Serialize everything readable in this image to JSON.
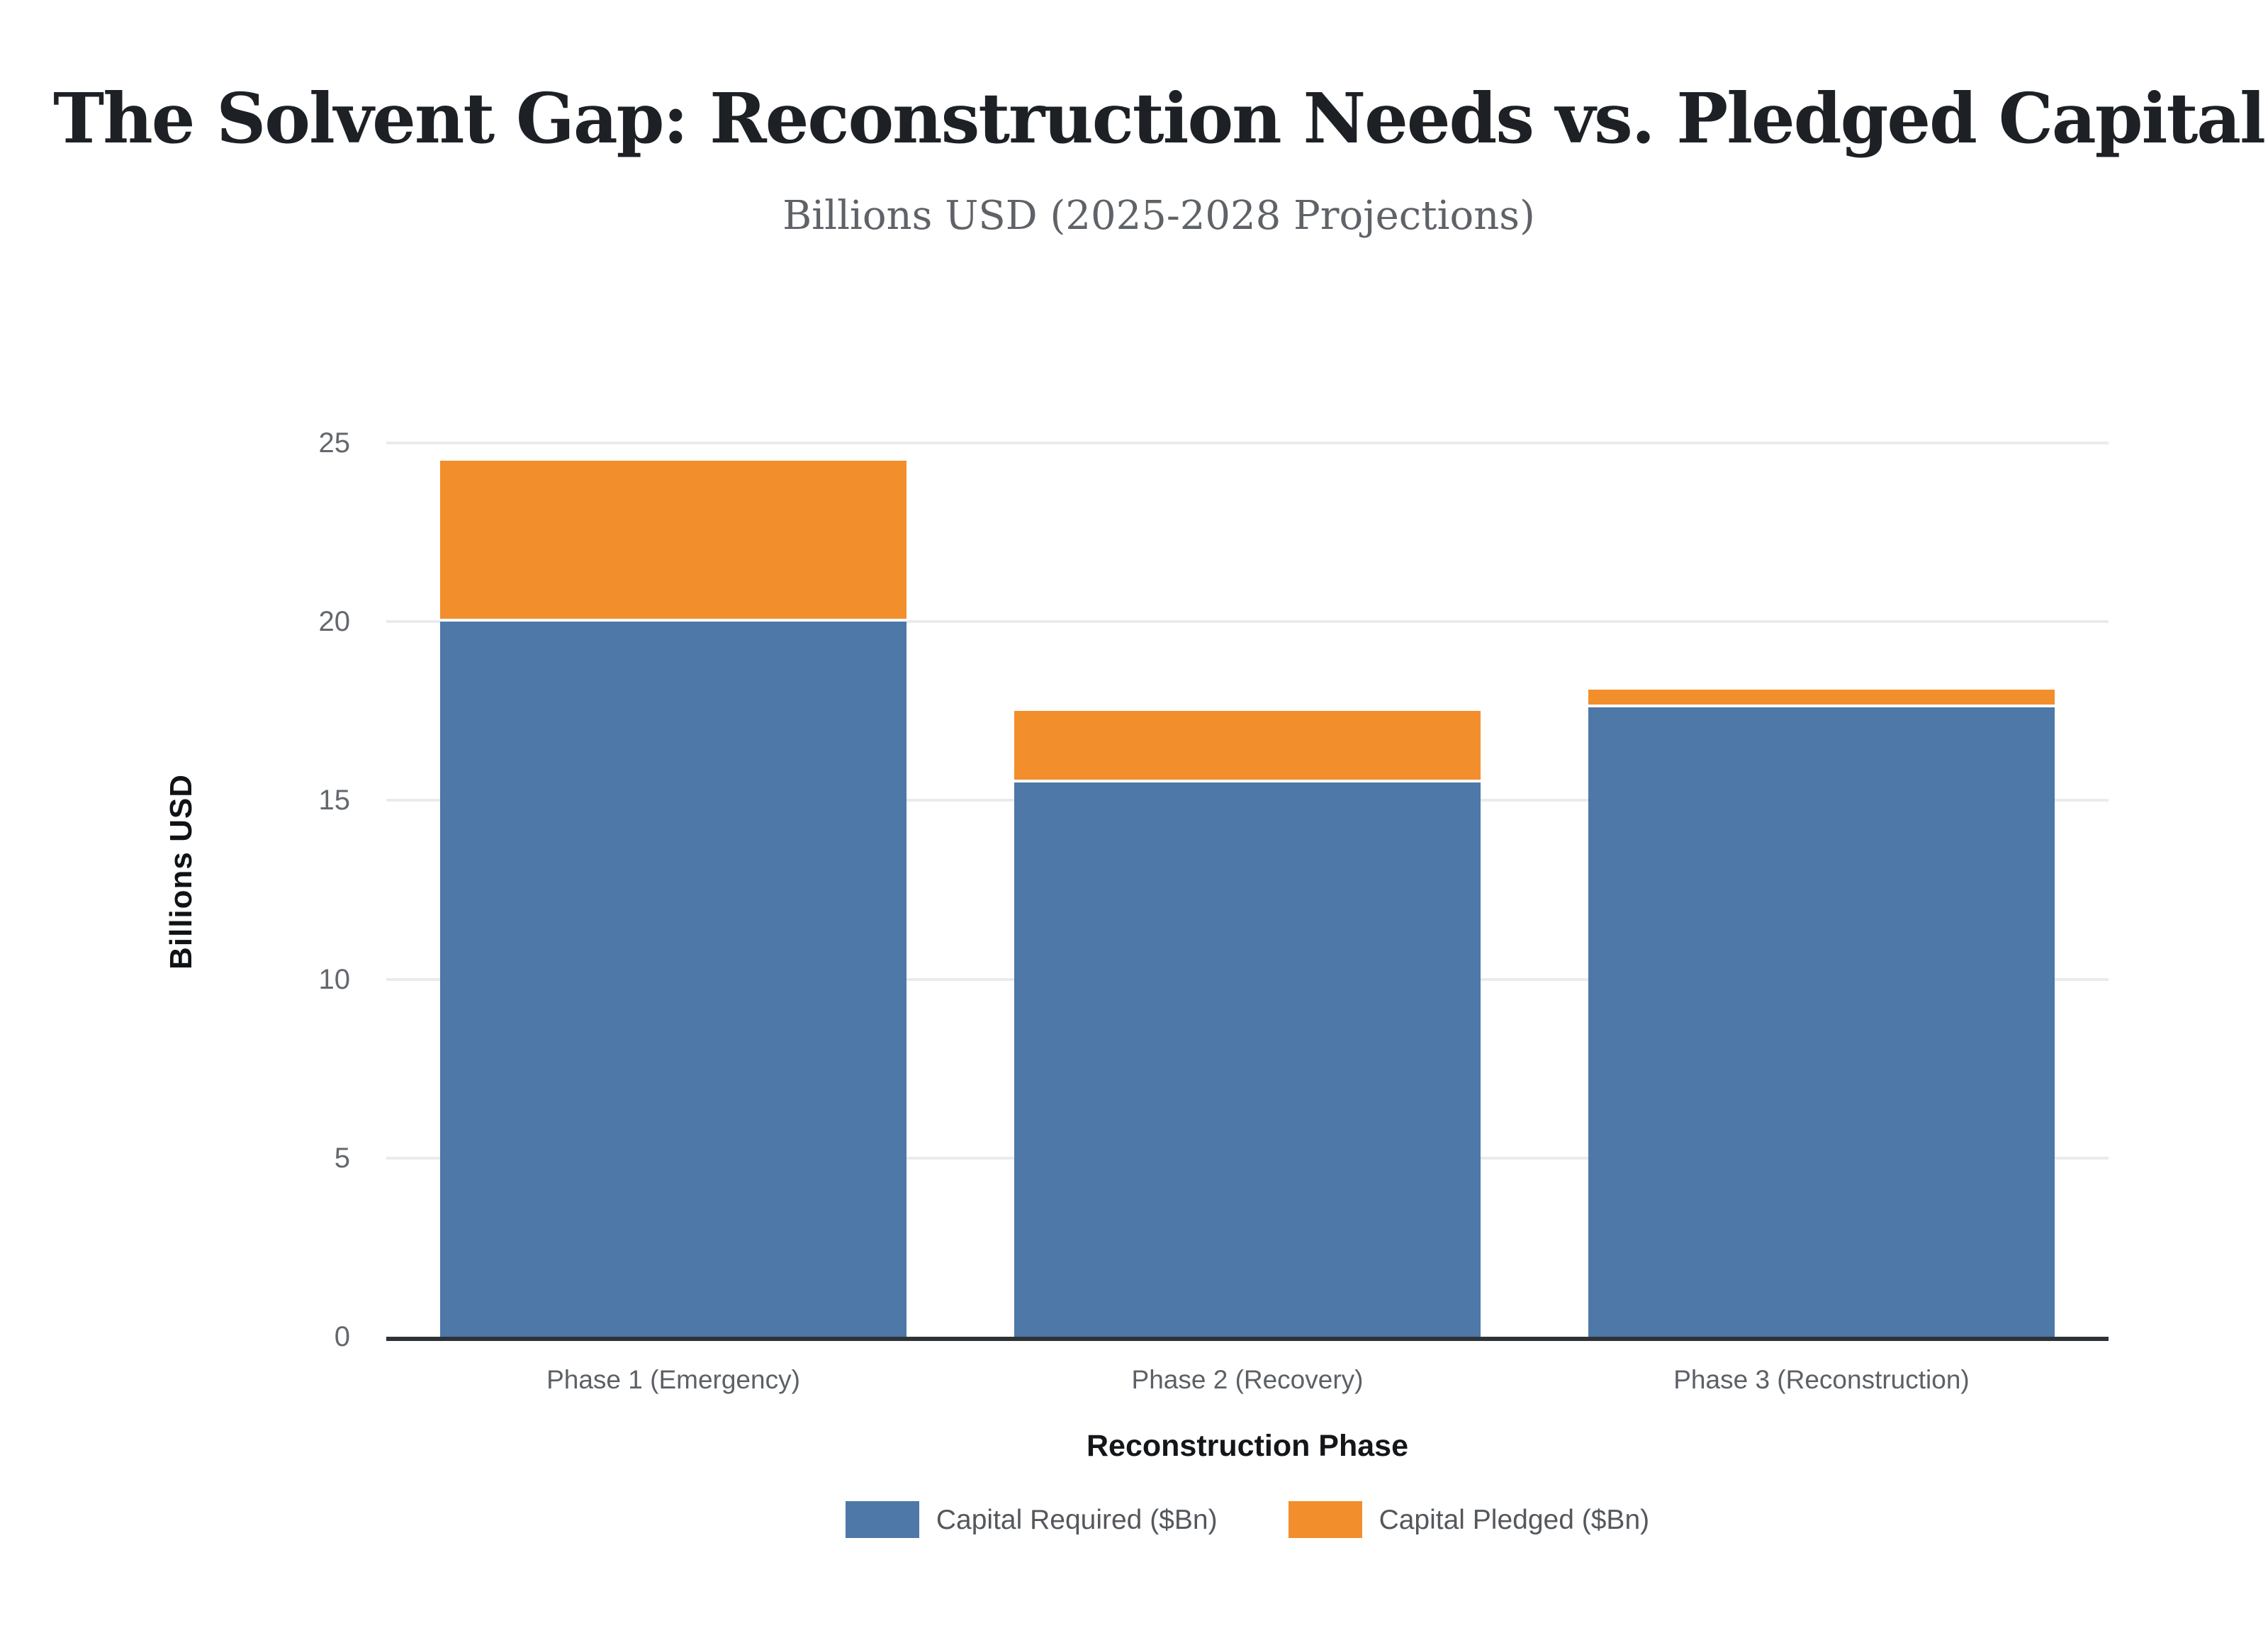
{
  "header": {
    "title": "The Solvent Gap: Reconstruction Needs vs. Pledged Capital",
    "subtitle": "Billions USD (2025-2028 Projections)"
  },
  "chart_data": {
    "type": "bar",
    "stacked": true,
    "title": "The Solvent Gap: Reconstruction Needs vs. Pledged Capital",
    "subtitle": "Billions USD (2025-2028 Projections)",
    "xlabel": "Reconstruction Phase",
    "ylabel": "Billions USD",
    "categories": [
      "Phase 1 (Emergency)",
      "Phase 2 (Recovery)",
      "Phase 3 (Reconstruction)"
    ],
    "series": [
      {
        "name": "Capital Required ($Bn)",
        "color": "#4D78A7",
        "values": [
          20,
          15.5,
          17.6
        ]
      },
      {
        "name": "Capital Pledged ($Bn)",
        "color": "#F28E2C",
        "values": [
          4.5,
          2.0,
          0.5
        ]
      }
    ],
    "stack_totals": [
      24.5,
      17.5,
      18.1
    ],
    "ylim": [
      0,
      25
    ],
    "yticks": [
      0,
      5,
      10,
      15,
      20,
      25
    ],
    "grid": true,
    "legend_position": "bottom",
    "palette": {
      "grid_color": "#e9ebee",
      "axis_line_color": "#2e3338",
      "tick_text_color": "#63686d",
      "segment_divider_color": "#ffffff",
      "background": "#ffffff"
    }
  }
}
